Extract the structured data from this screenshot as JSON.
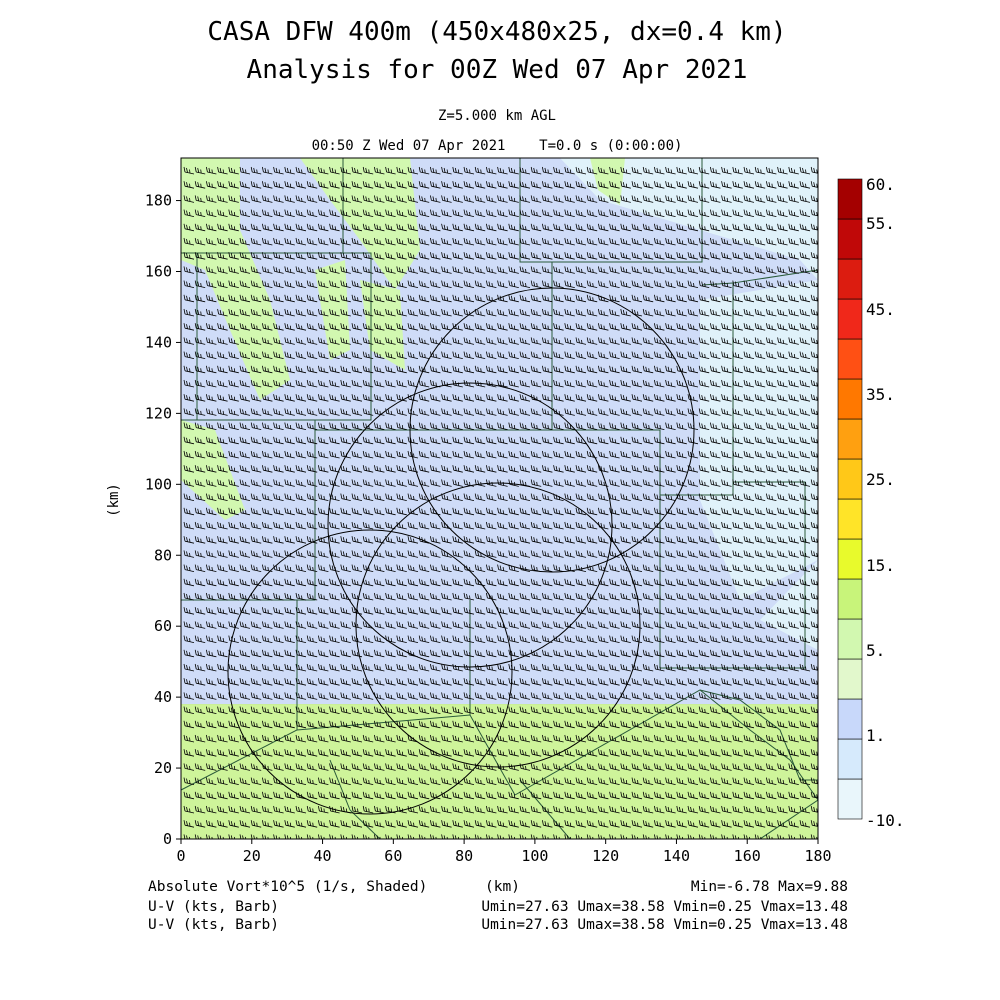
{
  "header": {
    "title_line1": "CASA DFW 400m (450x480x25, dx=0.4 km)",
    "title_line2": "Analysis for 00Z Wed 07 Apr 2021",
    "level": "Z=5.000 km AGL",
    "time": "00:50 Z Wed 07 Apr 2021    T=0.0 s (0:00:00)"
  },
  "axes": {
    "x_label": "(km)",
    "y_label": "(km)",
    "x_ticks": [
      "0",
      "20",
      "40",
      "60",
      "80",
      "100",
      "120",
      "140",
      "160",
      "180"
    ],
    "y_ticks": [
      "0",
      "20",
      "40",
      "60",
      "80",
      "100",
      "120",
      "140",
      "160",
      "180"
    ]
  },
  "colorbar": {
    "labels": [
      "60.",
      "55.",
      "45.",
      "35.",
      "25.",
      "15.",
      "5.",
      "1.",
      "-10."
    ],
    "colors": [
      "#e9f6fb",
      "#d6eafc",
      "#c8d8fa",
      "#e2f8cc",
      "#d2f8b0",
      "#c8f47a",
      "#e8fa2c",
      "#ffe428",
      "#ffc818",
      "#ffa010",
      "#ff7800",
      "#ff5014",
      "#f0281a",
      "#dc1c10",
      "#c00808",
      "#a40000"
    ]
  },
  "footer": {
    "field_label": "Absolute Vort*10^5 (1/s, Shaded)",
    "x_unit": "(km)",
    "field_range": "Min=-6.78 Max=9.88",
    "vector_label_1": "U-V (kts, Barb)",
    "vector_range_1": "Umin=27.63 Umax=38.58 Vmin=0.25 Vmax=13.48",
    "vector_label_2": "U-V (kts, Barb)",
    "vector_range_2": "Umin=27.63 Umax=38.58 Vmin=0.25 Vmax=13.48"
  },
  "map": {
    "field_colors": {
      "background": "#e0f2fa",
      "low": "#cfdcf8",
      "green": "#d2f8b0",
      "green_light": "#def8c4",
      "boundary": "#2a5a3a",
      "range_ring": "#000000",
      "barb": "#000000"
    },
    "radars": [
      {
        "x_km": 95,
        "y_km": 118,
        "r_km": 40
      },
      {
        "x_km": 62,
        "y_km": 82,
        "r_km": 40
      },
      {
        "x_km": 88,
        "y_km": 100,
        "r_km": 40
      },
      {
        "x_km": 33,
        "y_km": 50,
        "r_km": 40
      }
    ]
  }
}
